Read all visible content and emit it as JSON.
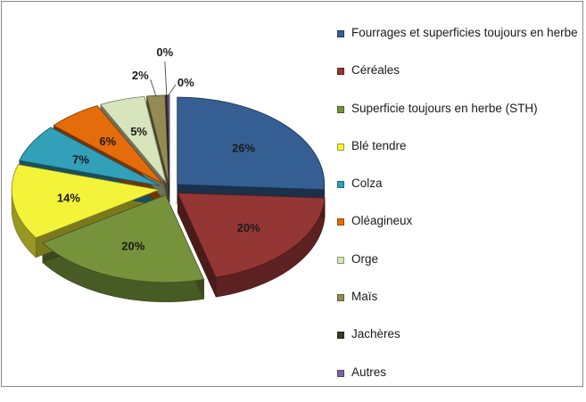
{
  "chart_data": {
    "type": "pie",
    "title": "",
    "categories": [
      "Fourrages et superficies toujours en herbe",
      "Céréales",
      "Superficie toujours en herbe (STH)",
      "Blé tendre",
      "Colza",
      "Oléagineux",
      "Orge",
      "Maïs",
      "Jachères",
      "Autres"
    ],
    "values": [
      26,
      20,
      20,
      14,
      7,
      6,
      5,
      2,
      0,
      0
    ],
    "data_labels": [
      "26%",
      "20%",
      "20%",
      "14%",
      "7%",
      "6%",
      "5%",
      "2%",
      "0%",
      "0%"
    ],
    "colors": [
      "#355f93",
      "#943634",
      "#76933c",
      "#f3f33a",
      "#31a0b8",
      "#e46c0a",
      "#d7e4bc",
      "#948a54",
      "#3a3a2a",
      "#8064a2"
    ],
    "legend_position": "right",
    "exploded": true,
    "three_d": true
  }
}
